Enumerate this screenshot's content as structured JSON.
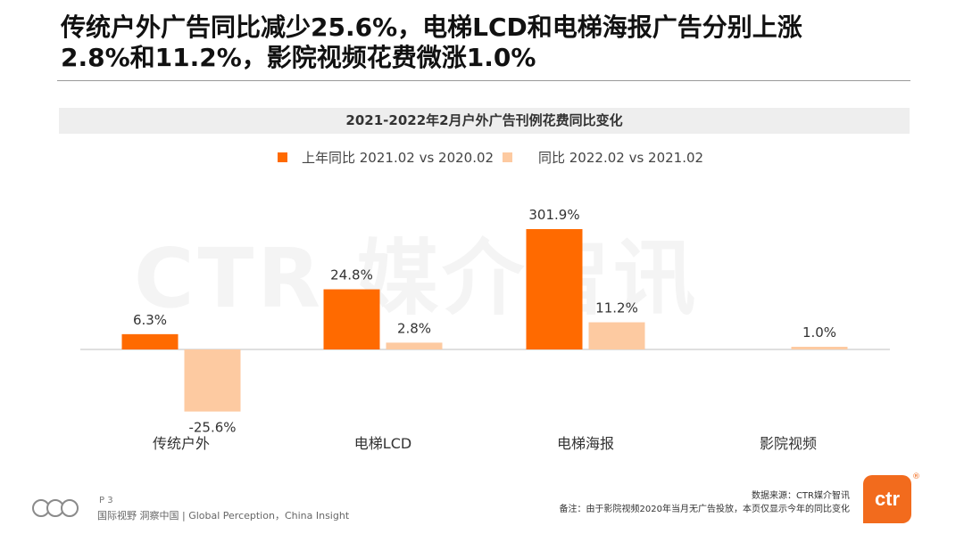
{
  "headline": "传统户外广告同比减少25.6%，电梯LCD和电梯海报广告分别上涨\n2.8%和11.2%，影院视频花费微涨1.0%",
  "watermark": "CTR 媒介智讯",
  "colors": {
    "series_prev": "#ff6a00",
    "series_curr": "#fdcaa1",
    "axis": "#bfbfbf"
  },
  "chart_data": {
    "type": "bar",
    "title": "2021-2022年2月户外广告刊例花费同比变化",
    "categories": [
      "传统户外",
      "电梯LCD",
      "电梯海报",
      "影院视频"
    ],
    "series": [
      {
        "name": "上年同比 2021.02 vs 2020.02",
        "values": [
          6.3,
          24.8,
          301.9,
          null
        ],
        "labels": [
          "6.3%",
          "24.8%",
          "301.9%",
          ""
        ]
      },
      {
        "name": "同比 2022.02 vs 2021.02",
        "values": [
          -25.6,
          2.8,
          11.2,
          1.0
        ],
        "labels": [
          "-25.6%",
          "2.8%",
          "11.2%",
          "1.0%"
        ]
      }
    ],
    "legend": "top",
    "grid": false
  },
  "footer": {
    "page": "P 3",
    "slogan": "国际视野  洞察中国 | Global Perception，China Insight",
    "source": "数据来源：CTR媒介智讯",
    "note": "备注：由于影院视频2020年当月无广告投放，本页仅显示今年的同比变化",
    "logo_text": "ctr",
    "logo_mark": "®"
  }
}
